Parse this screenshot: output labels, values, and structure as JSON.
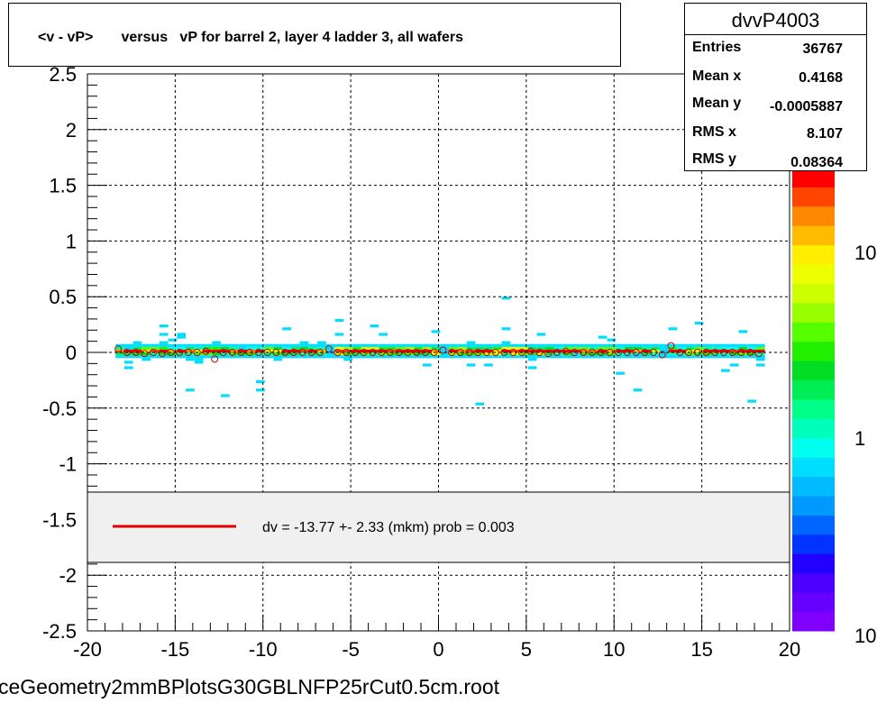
{
  "chart_data": {
    "type": "heatmap",
    "title": "<v - vP>       versus   vP for barrel 2, layer 4 ladder 3, all wafers",
    "xlim": [
      -20,
      20
    ],
    "ylim": [
      -2.5,
      2.5
    ],
    "x_ticks": [
      "-20",
      "-15",
      "-10",
      "-5",
      "0",
      "5",
      "10",
      "15",
      "20"
    ],
    "y_ticks": [
      "-2.5",
      "-2",
      "-1.5",
      "-1",
      "-0.5",
      "0",
      "0.5",
      "1",
      "1.5",
      "2",
      "2.5"
    ],
    "grid": true,
    "z_scale": "log",
    "z_ticks": [
      "1",
      "10",
      "10"
    ],
    "profile_x": [
      -18.25,
      -17.75,
      -17.25,
      -16.75,
      -16.25,
      -15.75,
      -15.25,
      -14.75,
      -14.25,
      -13.75,
      -13.25,
      -12.75,
      -12.25,
      -11.75,
      -11.25,
      -10.75,
      -10.25,
      -9.75,
      -9.25,
      -8.75,
      -8.25,
      -7.75,
      -7.25,
      -6.75,
      -6.25,
      -5.75,
      -5.25,
      -4.75,
      -4.25,
      -3.75,
      -3.25,
      -2.75,
      -2.25,
      -1.75,
      -1.25,
      -0.75,
      -0.25,
      0.25,
      0.75,
      1.25,
      1.75,
      2.25,
      2.75,
      3.25,
      3.75,
      4.25,
      4.75,
      5.25,
      5.75,
      6.25,
      6.75,
      7.25,
      7.75,
      8.25,
      8.75,
      9.25,
      9.75,
      10.25,
      10.75,
      11.25,
      11.75,
      12.25,
      12.75,
      13.25,
      13.75,
      14.25,
      14.75,
      15.25,
      15.75,
      16.25,
      16.75,
      17.25,
      17.75,
      18.25
    ],
    "profile_y": [
      0.03,
      0.0,
      0.0,
      -0.01,
      0.0,
      -0.01,
      0.0,
      0.0,
      0.0,
      0.0,
      0.01,
      -0.06,
      0.0,
      0.0,
      0.0,
      0.0,
      0.0,
      0.0,
      0.0,
      0.0,
      0.0,
      0.0,
      0.0,
      0.0,
      0.03,
      0.0,
      0.0,
      0.0,
      0.0,
      0.0,
      0.0,
      0.0,
      0.0,
      0.0,
      0.0,
      0.0,
      0.0,
      0.02,
      0.0,
      0.0,
      0.0,
      0.0,
      0.0,
      0.0,
      0.0,
      0.0,
      0.0,
      0.01,
      0.0,
      -0.01,
      0.0,
      0.01,
      0.0,
      0.0,
      0.0,
      0.0,
      0.0,
      0.0,
      0.0,
      0.0,
      0.0,
      0.0,
      -0.02,
      0.06,
      0.0,
      0.0,
      0.0,
      0.0,
      0.0,
      0.0,
      0.0,
      0.0,
      0.0,
      -0.01
    ]
  },
  "title": "<v - vP>       versus   vP for barrel 2, layer 4 ladder 3, all wafers",
  "stats": {
    "name": "dvvP4003",
    "rows": [
      {
        "label": "Entries",
        "value": "36767"
      },
      {
        "label": "Mean x",
        "value": "0.4168"
      },
      {
        "label": "Mean y",
        "value": "-0.0005887"
      },
      {
        "label": "RMS x",
        "value": "8.107"
      },
      {
        "label": "RMS y",
        "value": "0.08364"
      }
    ]
  },
  "legend": {
    "text": "dv =  -13.77 +-  2.33 (mkm) prob = 0.003",
    "line_color": "#dd0000"
  },
  "footer": "ceGeometry2mmBPlotsG30GBLNFP25rCut0.5cm.root",
  "colors": {
    "palette": [
      "#7f00ff",
      "#6600ff",
      "#4c00ff",
      "#2200ff",
      "#0033ff",
      "#0066ff",
      "#0099ff",
      "#00bbff",
      "#00ddff",
      "#00ffee",
      "#00ffbb",
      "#00ff88",
      "#00ee55",
      "#00dd22",
      "#22ee00",
      "#55ff00",
      "#99ff00",
      "#ccff00",
      "#eeff00",
      "#ffee00",
      "#ffbb00",
      "#ff8800",
      "#ff4400",
      "#ff0000"
    ],
    "profile_marker": "#cc0000",
    "legend_bg": "#f0f0f0"
  }
}
